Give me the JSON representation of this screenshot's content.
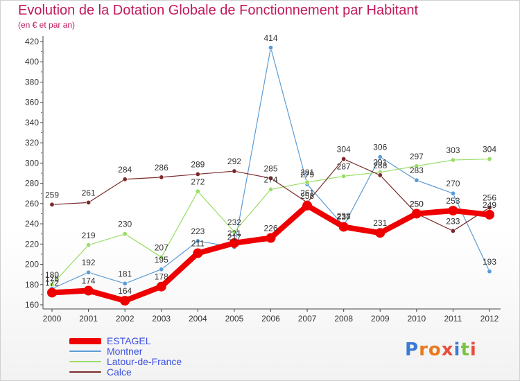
{
  "title": "Evolution de la Dotation Globale de Fonctionnement par Habitant",
  "subtitle": "(en € et par an)",
  "logo": {
    "letters": [
      "P",
      "r",
      "o",
      "x",
      "i",
      "t",
      "i"
    ],
    "colors": [
      "#3a7bd5",
      "#e8791e",
      "#e8791e",
      "#e84c3d",
      "#3a7bd5",
      "#7cc242",
      "#e84c3d"
    ]
  },
  "chart_data": {
    "type": "line",
    "title": "Evolution de la Dotation Globale de Fonctionnement par Habitant",
    "xlabel": "",
    "ylabel": "(en € et par an)",
    "x": [
      "2000",
      "2001",
      "2002",
      "2003",
      "2004",
      "2005",
      "2006",
      "2007",
      "2008",
      "2009",
      "2010",
      "2011",
      "2012"
    ],
    "ylim": [
      160,
      420
    ],
    "yticks": [
      160,
      180,
      200,
      220,
      240,
      260,
      280,
      300,
      320,
      340,
      360,
      380,
      400,
      420
    ],
    "grid": false,
    "legend_position": "bottom-left",
    "series": [
      {
        "name": "ESTAGEL",
        "color": "#ee0000",
        "values": [
          172,
          174,
          164,
          178,
          211,
          221,
          226,
          258,
          237,
          231,
          250,
          253,
          249
        ],
        "labels": [
          172,
          174,
          164,
          178,
          211,
          221,
          226,
          258,
          237,
          231,
          250,
          253,
          249
        ]
      },
      {
        "name": "Montner",
        "color": "#5b9bd5",
        "values": [
          176,
          192,
          181,
          195,
          223,
          217,
          414,
          279,
          238,
          306,
          283,
          270,
          193
        ],
        "labels": [
          176,
          192,
          181,
          195,
          223,
          217,
          414,
          279,
          238,
          306,
          283,
          270,
          193
        ]
      },
      {
        "name": "Latour-de-France",
        "color": "#99dd66",
        "values": [
          180,
          219,
          230,
          207,
          272,
          232,
          274,
          281,
          287,
          291,
          297,
          303,
          304
        ],
        "labels": [
          180,
          219,
          230,
          207,
          272,
          232,
          274,
          281,
          287,
          291,
          297,
          303,
          304
        ]
      },
      {
        "name": "Calce",
        "color": "#7a2a2a",
        "values": [
          259,
          261,
          284,
          286,
          289,
          292,
          285,
          261,
          304,
          288,
          250,
          233,
          256
        ],
        "labels": [
          259,
          261,
          284,
          286,
          289,
          292,
          285,
          261,
          304,
          288,
          250,
          233,
          256
        ]
      }
    ]
  }
}
